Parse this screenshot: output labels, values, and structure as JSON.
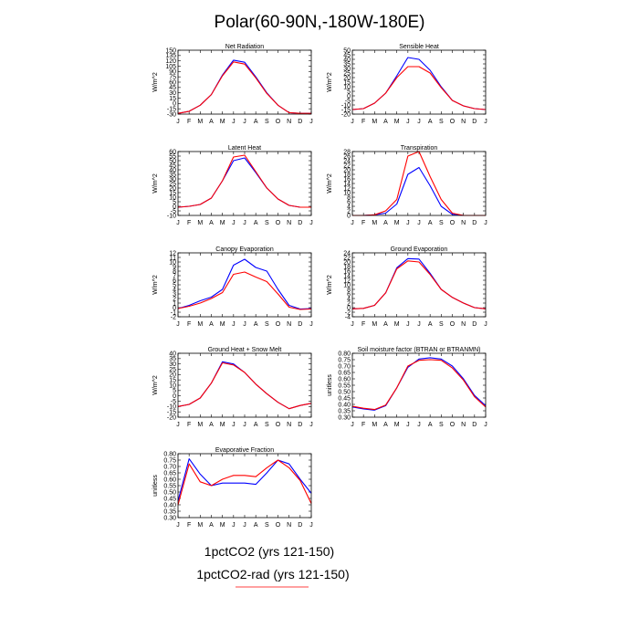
{
  "figure_title": "Polar(60-90N,-180W-180E)",
  "legend": [
    {
      "label": "1pctCO2 (yrs 121-150)",
      "color": "#0000ff"
    },
    {
      "label": "1pctCO2-rad (yrs 121-150)",
      "color": "#ff0000"
    }
  ],
  "chart_data": [
    {
      "type": "line",
      "title": "Net Radiation",
      "ylabel": "W/m^2",
      "ylim": [
        -30,
        150
      ],
      "yticks": [
        "-30",
        "-15",
        "0",
        "15",
        "30",
        "45",
        "60",
        "75",
        "90",
        "105",
        "120",
        "135",
        "150"
      ],
      "categories": [
        "J",
        "F",
        "M",
        "A",
        "M",
        "J",
        "J",
        "A",
        "S",
        "O",
        "N",
        "D",
        "J"
      ],
      "series": [
        {
          "color": "#0000ff",
          "values": [
            -28,
            -22,
            -5,
            25,
            80,
            122,
            116,
            75,
            30,
            -5,
            -26,
            -28,
            -28
          ]
        },
        {
          "color": "#ff0000",
          "values": [
            -28,
            -22,
            -5,
            25,
            78,
            117,
            111,
            72,
            28,
            -5,
            -26,
            -28,
            -28
          ]
        }
      ]
    },
    {
      "type": "line",
      "title": "Sensible Heat",
      "ylabel": "W/m^2",
      "ylim": [
        -20,
        50
      ],
      "yticks": [
        "-20",
        "-15",
        "-10",
        "-5",
        "0",
        "5",
        "10",
        "15",
        "20",
        "25",
        "30",
        "35",
        "40",
        "45",
        "50"
      ],
      "categories": [
        "J",
        "F",
        "M",
        "A",
        "M",
        "J",
        "J",
        "A",
        "S",
        "O",
        "N",
        "D",
        "J"
      ],
      "series": [
        {
          "color": "#0000ff",
          "values": [
            -15,
            -14,
            -8,
            3,
            22,
            42,
            40,
            28,
            10,
            -5,
            -11,
            -14,
            -15
          ]
        },
        {
          "color": "#ff0000",
          "values": [
            -15,
            -14,
            -8,
            3,
            20,
            32,
            32,
            25,
            9,
            -5,
            -11,
            -14,
            -15
          ]
        }
      ]
    },
    {
      "type": "line",
      "title": "Latent Heat",
      "ylabel": "W/m^2",
      "ylim": [
        -10,
        60
      ],
      "yticks": [
        "-10",
        "-5",
        "0",
        "5",
        "10",
        "15",
        "20",
        "25",
        "30",
        "35",
        "40",
        "45",
        "50",
        "55",
        "60"
      ],
      "categories": [
        "J",
        "F",
        "M",
        "A",
        "M",
        "J",
        "J",
        "A",
        "S",
        "O",
        "N",
        "D",
        "J"
      ],
      "series": [
        {
          "color": "#0000ff",
          "values": [
            -1,
            0,
            2,
            9,
            28,
            50,
            53,
            37,
            20,
            8,
            1,
            -1,
            -1
          ]
        },
        {
          "color": "#ff0000",
          "values": [
            -1,
            0,
            2,
            9,
            28,
            54,
            56,
            38,
            20,
            8,
            1,
            -1,
            -1
          ]
        }
      ]
    },
    {
      "type": "line",
      "title": "Transpiration",
      "ylabel": "W/m^2",
      "ylim": [
        0,
        28
      ],
      "yticks": [
        "0",
        "2",
        "4",
        "6",
        "8",
        "10",
        "12",
        "14",
        "16",
        "18",
        "20",
        "22",
        "24",
        "26",
        "28"
      ],
      "categories": [
        "J",
        "F",
        "M",
        "A",
        "M",
        "J",
        "J",
        "A",
        "S",
        "O",
        "N",
        "D",
        "J"
      ],
      "series": [
        {
          "color": "#0000ff",
          "values": [
            0,
            0,
            0.3,
            1,
            5,
            18,
            21,
            13,
            4,
            0.5,
            0,
            0,
            0
          ]
        },
        {
          "color": "#ff0000",
          "values": [
            0,
            0,
            0.3,
            2,
            7,
            26,
            28,
            17,
            7,
            1,
            0,
            0,
            0
          ]
        }
      ]
    },
    {
      "type": "line",
      "title": "Canopy Evaporation",
      "ylabel": "W/m^2",
      "ylim": [
        -2,
        12
      ],
      "yticks": [
        "-2",
        "-1",
        "0",
        "1",
        "2",
        "3",
        "4",
        "5",
        "6",
        "7",
        "8",
        "9",
        "10",
        "11",
        "12"
      ],
      "categories": [
        "J",
        "F",
        "M",
        "A",
        "M",
        "J",
        "J",
        "A",
        "S",
        "O",
        "N",
        "D",
        "J"
      ],
      "series": [
        {
          "color": "#0000ff",
          "values": [
            -0.2,
            0.5,
            1.5,
            2.3,
            4,
            9.3,
            10.6,
            8.8,
            8,
            4,
            0.5,
            -0.3,
            -0.2
          ]
        },
        {
          "color": "#ff0000",
          "values": [
            -0.2,
            0.3,
            1,
            2,
            3.3,
            7.3,
            7.8,
            6.7,
            5.7,
            3,
            0.1,
            -0.4,
            -0.3
          ]
        }
      ]
    },
    {
      "type": "line",
      "title": "Ground Evaporation",
      "ylabel": "W/m^2",
      "ylim": [
        -4,
        24
      ],
      "yticks": [
        "-4",
        "-2",
        "0",
        "2",
        "4",
        "6",
        "8",
        "10",
        "12",
        "14",
        "16",
        "18",
        "20",
        "22",
        "24"
      ],
      "categories": [
        "J",
        "F",
        "M",
        "A",
        "M",
        "J",
        "J",
        "A",
        "S",
        "O",
        "N",
        "D",
        "J"
      ],
      "series": [
        {
          "color": "#0000ff",
          "values": [
            -0.5,
            -0.3,
            1,
            6.5,
            17.5,
            21.5,
            21.3,
            15,
            8,
            4.5,
            2,
            0,
            -0.5
          ]
        },
        {
          "color": "#ff0000",
          "values": [
            -0.5,
            -0.3,
            1,
            6.5,
            17,
            20.5,
            20,
            14.5,
            8,
            4.5,
            2,
            0,
            -0.5
          ]
        }
      ]
    },
    {
      "type": "line",
      "title": "Ground Heat + Snow Melt",
      "ylabel": "W/m^2",
      "ylim": [
        -20,
        40
      ],
      "yticks": [
        "-20",
        "-15",
        "-10",
        "-5",
        "0",
        "5",
        "10",
        "15",
        "20",
        "25",
        "30",
        "35",
        "40"
      ],
      "categories": [
        "J",
        "F",
        "M",
        "A",
        "M",
        "J",
        "J",
        "A",
        "S",
        "O",
        "N",
        "D",
        "J"
      ],
      "series": [
        {
          "color": "#0000ff",
          "values": [
            -10,
            -8,
            -2,
            12,
            32,
            30,
            22,
            11,
            2,
            -6,
            -12,
            -9,
            -7
          ]
        },
        {
          "color": "#ff0000",
          "values": [
            -10,
            -8,
            -2,
            12,
            31,
            29,
            22,
            11,
            2,
            -6,
            -12,
            -9,
            -7
          ]
        }
      ]
    },
    {
      "type": "line",
      "title": "Soil moisture factor (BTRAN or BTRANMN)",
      "ylabel": "unitless",
      "ylim": [
        0.3,
        0.8
      ],
      "yticks": [
        "0.30",
        "0.35",
        "0.40",
        "0.45",
        "0.50",
        "0.55",
        "0.60",
        "0.65",
        "0.70",
        "0.75",
        "0.80"
      ],
      "categories": [
        "J",
        "F",
        "M",
        "A",
        "M",
        "J",
        "J",
        "A",
        "S",
        "O",
        "N",
        "D",
        "J"
      ],
      "series": [
        {
          "color": "#0000ff",
          "values": [
            0.38,
            0.365,
            0.355,
            0.39,
            0.53,
            0.69,
            0.755,
            0.765,
            0.755,
            0.7,
            0.6,
            0.47,
            0.39
          ]
        },
        {
          "color": "#ff0000",
          "values": [
            0.385,
            0.37,
            0.36,
            0.395,
            0.53,
            0.7,
            0.745,
            0.75,
            0.745,
            0.685,
            0.59,
            0.46,
            0.38
          ]
        }
      ]
    },
    {
      "type": "line",
      "title": "Evaporative Fraction",
      "ylabel": "unitless",
      "ylim": [
        0.3,
        0.8
      ],
      "yticks": [
        "0.30",
        "0.35",
        "0.40",
        "0.45",
        "0.50",
        "0.55",
        "0.60",
        "0.65",
        "0.70",
        "0.75",
        "0.80"
      ],
      "categories": [
        "J",
        "F",
        "M",
        "A",
        "M",
        "J",
        "J",
        "A",
        "S",
        "O",
        "N",
        "D",
        "J"
      ],
      "series": [
        {
          "color": "#0000ff",
          "values": [
            0.43,
            0.76,
            0.64,
            0.55,
            0.57,
            0.57,
            0.57,
            0.56,
            0.65,
            0.75,
            0.72,
            0.6,
            0.49
          ]
        },
        {
          "color": "#ff0000",
          "values": [
            0.4,
            0.72,
            0.58,
            0.55,
            0.6,
            0.63,
            0.63,
            0.62,
            0.69,
            0.75,
            0.69,
            0.59,
            0.41
          ]
        }
      ]
    }
  ]
}
